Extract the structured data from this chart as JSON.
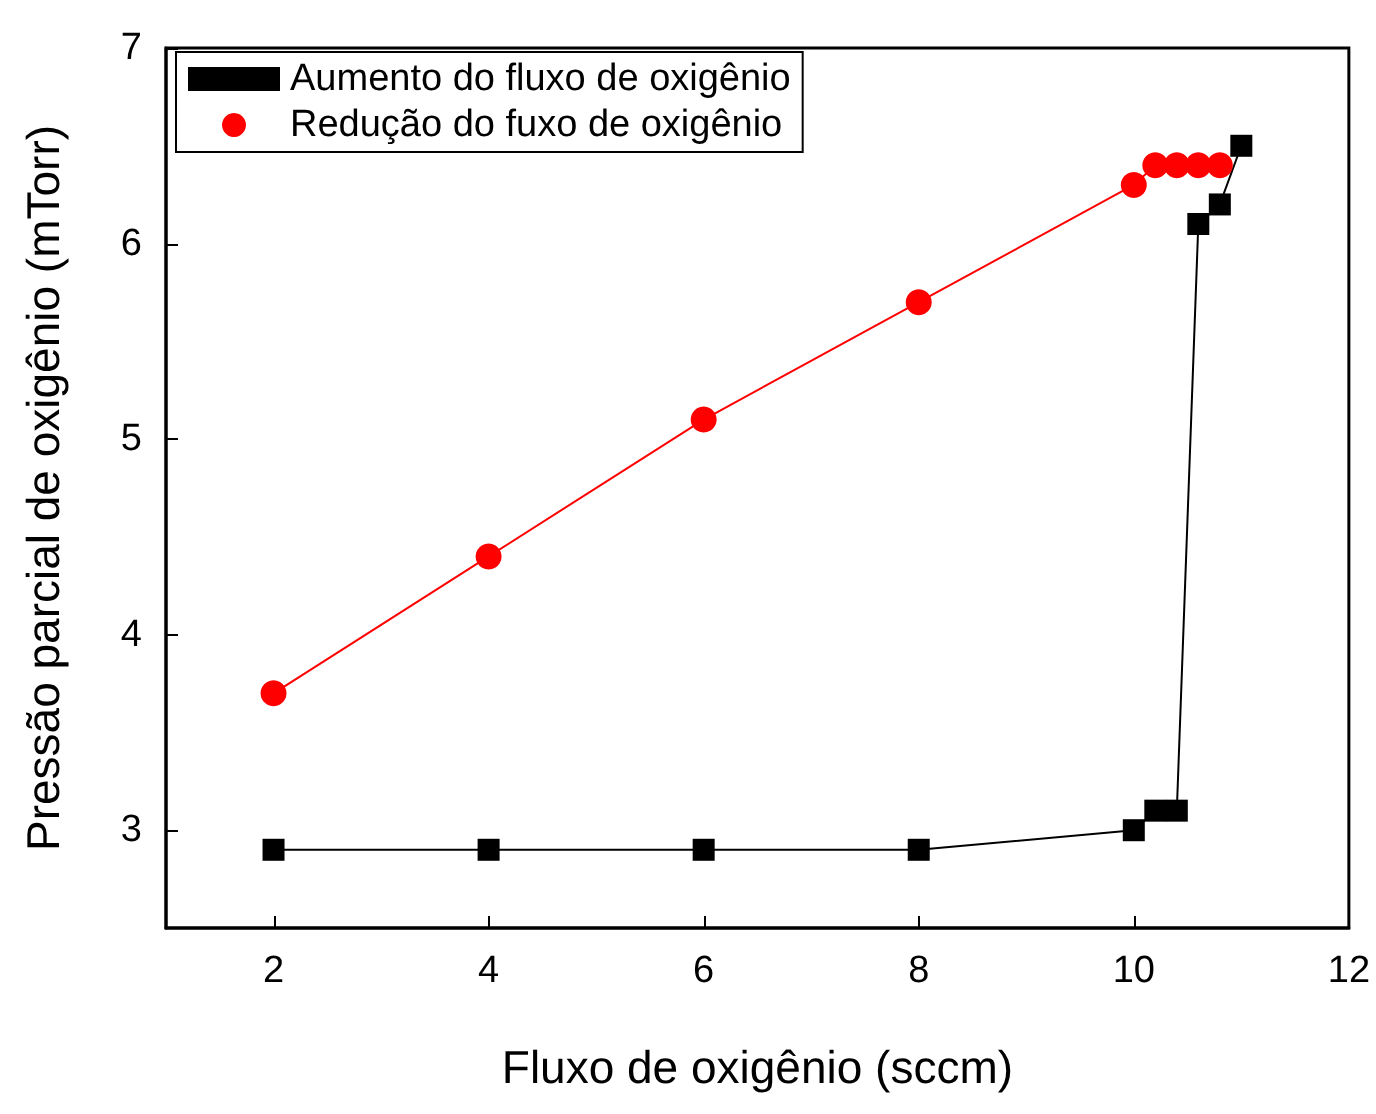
{
  "chart_data": {
    "type": "line",
    "xlabel": "Fluxo de oxigênio (sccm)",
    "ylabel": "Pressão parcial de oxigênio (mTorr)",
    "xlim": [
      1,
      12
    ],
    "xticks": [
      2,
      4,
      6,
      8,
      10,
      12
    ],
    "ylim": [
      2.5,
      7
    ],
    "yticks": [
      3,
      4,
      5,
      6,
      7
    ],
    "grid": false,
    "legend": "top left",
    "line_style": "solid",
    "series": [
      {
        "name": "Aumento do fluxo de oxigênio",
        "color": "#000000",
        "marker": "square",
        "x": [
          2,
          4,
          6,
          8,
          10,
          10.2,
          10.4,
          10.6,
          10.8,
          11
        ],
        "values": [
          2.9,
          2.9,
          2.9,
          2.9,
          3.0,
          3.1,
          3.1,
          6.1,
          6.2,
          6.5
        ]
      },
      {
        "name": "Redução do fuxo de oxigênio",
        "color": "#ff0000",
        "marker": "circle",
        "x": [
          2,
          4,
          6,
          8,
          10,
          10.2,
          10.4,
          10.6,
          10.8
        ],
        "values": [
          3.7,
          4.4,
          5.1,
          5.7,
          6.3,
          6.4,
          6.4,
          6.4,
          6.4
        ]
      }
    ]
  }
}
